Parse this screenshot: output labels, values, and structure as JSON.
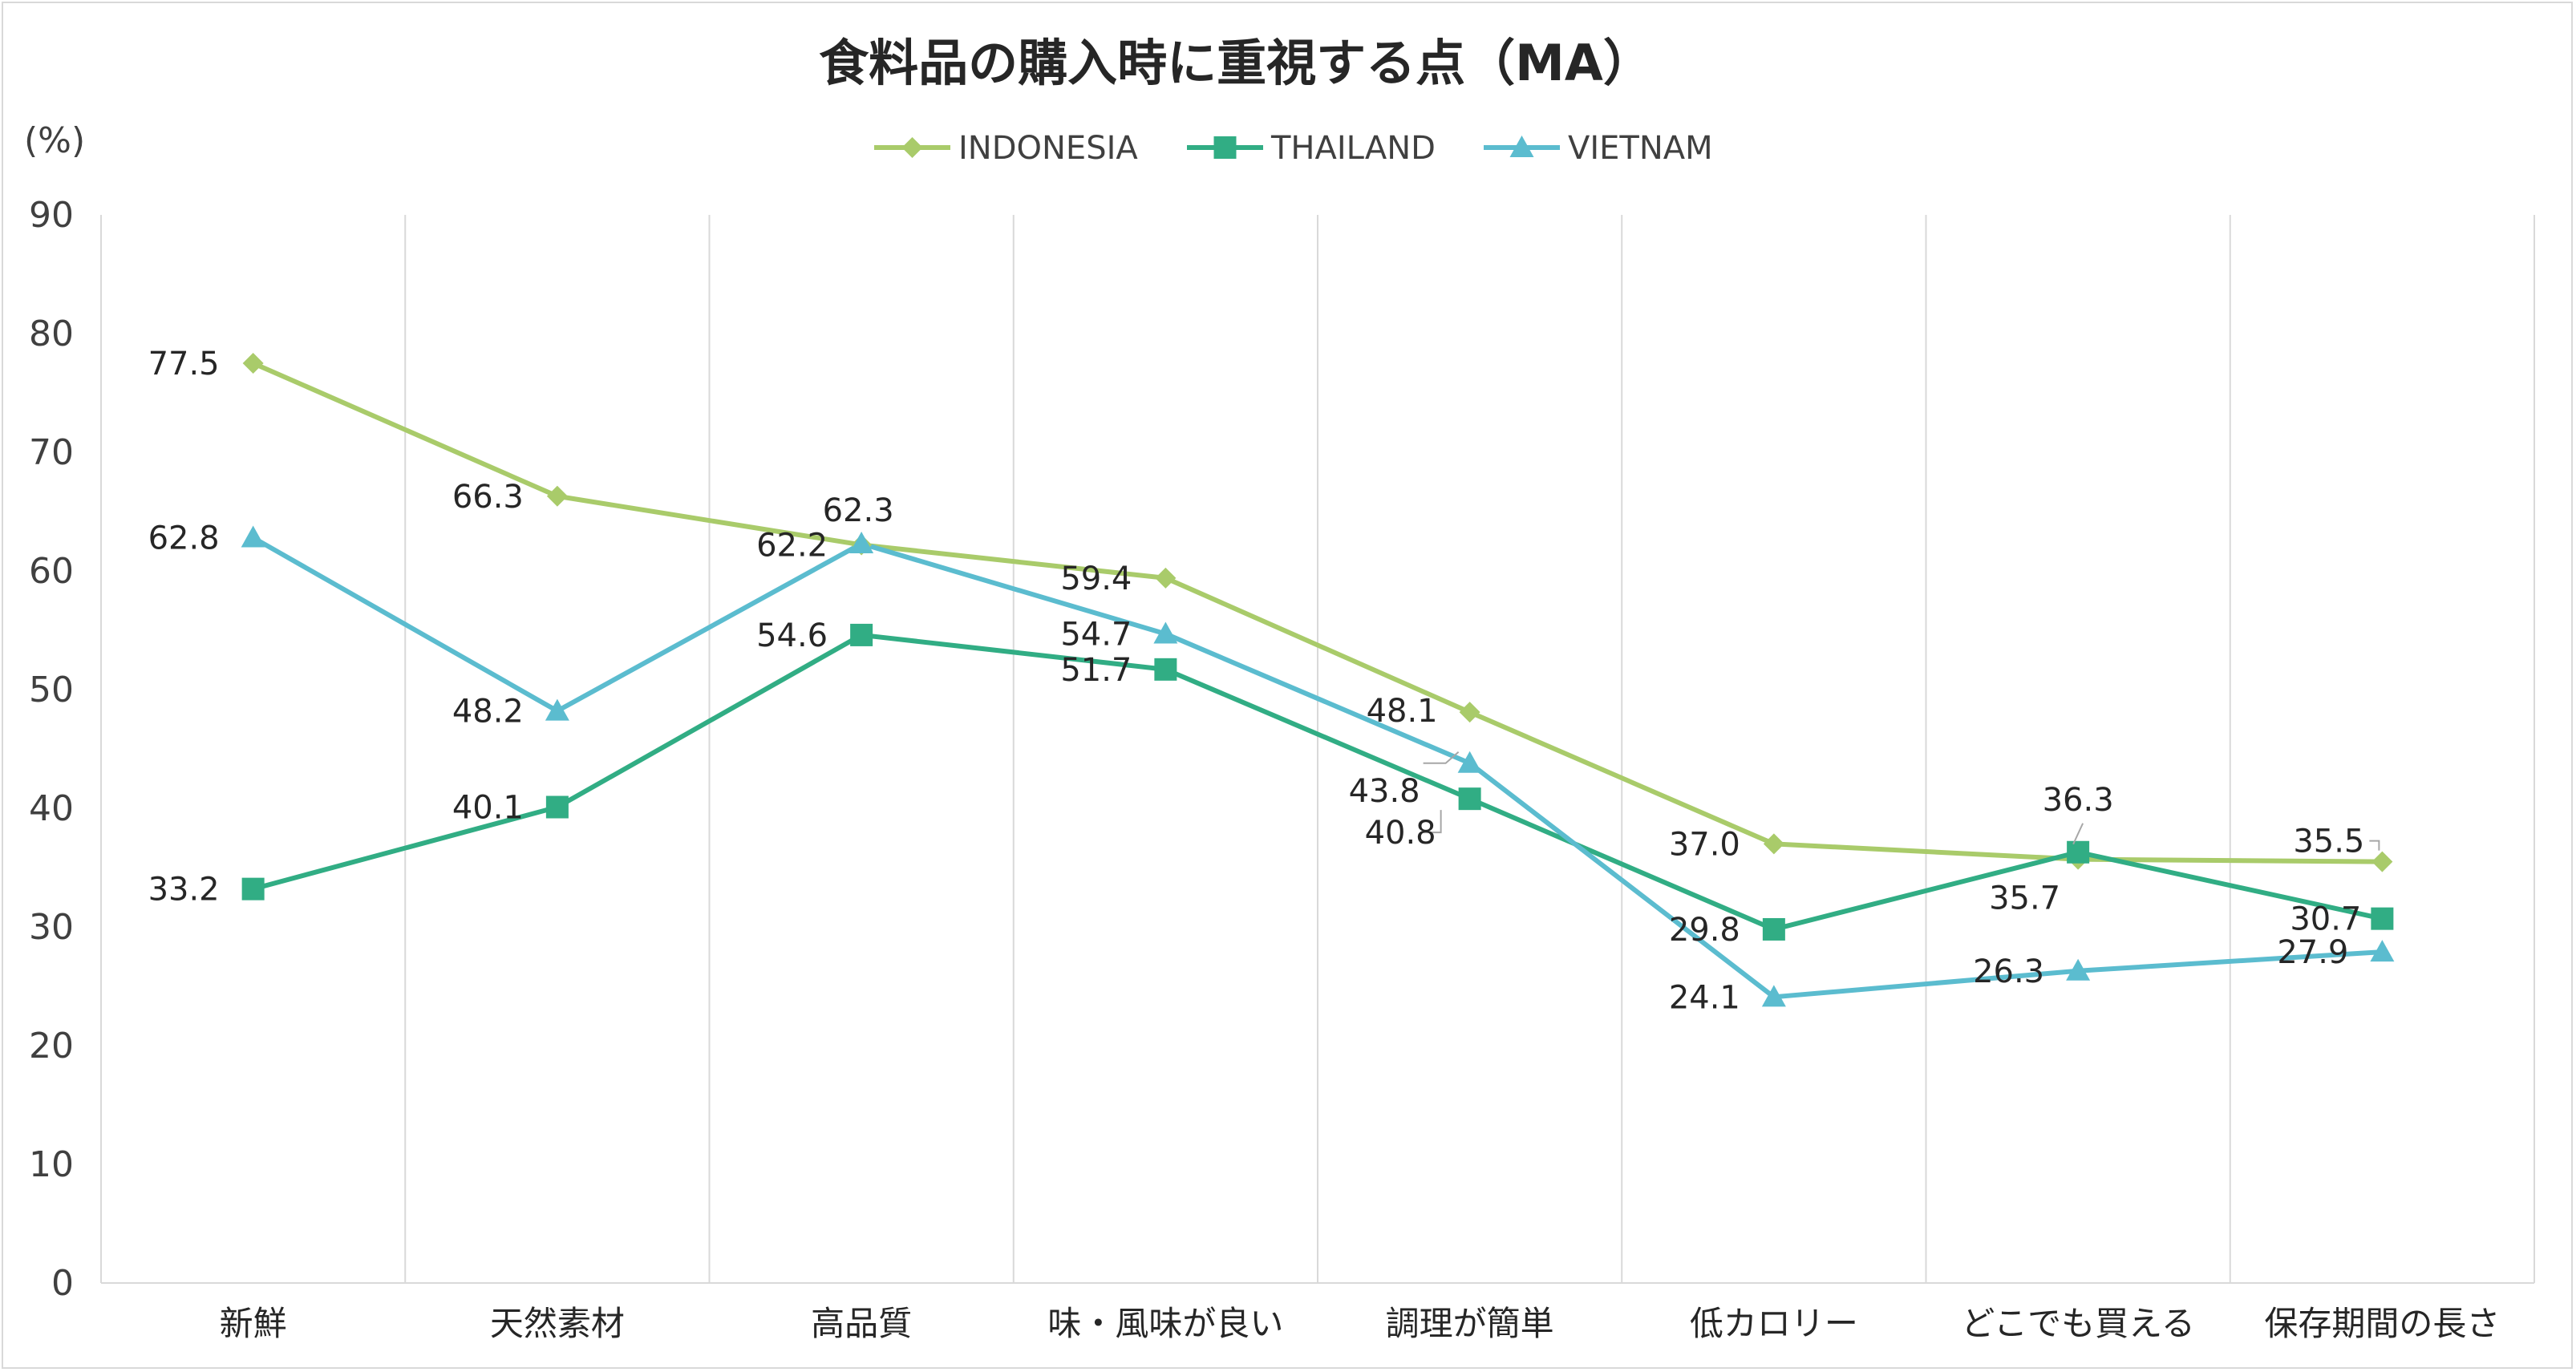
{
  "chart_data": {
    "type": "line",
    "title": "食料品の購入時に重視する点（MA）",
    "ylabel": "(%)",
    "xlabel": "",
    "ylim": [
      0,
      90
    ],
    "yticks": [
      0,
      10,
      20,
      30,
      40,
      50,
      60,
      70,
      80,
      90
    ],
    "grid": "vertical",
    "legend_position": "top",
    "categories": [
      "新鮮",
      "天然素材",
      "高品質",
      "味・風味が良い",
      "調理が簡単",
      "低カロリー",
      "どこでも買える",
      "保存期間の長さ"
    ],
    "series": [
      {
        "name": "INDONESIA",
        "color": "#a9cb6a",
        "marker": "diamond",
        "values": [
          77.5,
          66.3,
          62.2,
          59.4,
          48.1,
          37.0,
          35.7,
          35.5
        ],
        "labels": [
          "77.5",
          "66.3",
          "62.2",
          "59.4",
          "48.1",
          "37.0",
          "35.7",
          "35.5"
        ]
      },
      {
        "name": "THAILAND",
        "color": "#31ad84",
        "marker": "square",
        "values": [
          33.2,
          40.1,
          54.6,
          51.7,
          40.8,
          29.8,
          36.3,
          30.7
        ],
        "labels": [
          "33.2",
          "40.1",
          "54.6",
          "51.7",
          "40.8",
          "29.8",
          "36.3",
          "30.7"
        ]
      },
      {
        "name": "VIETNAM",
        "color": "#5bbccf",
        "marker": "triangle",
        "values": [
          62.8,
          48.2,
          62.3,
          54.7,
          43.8,
          24.1,
          26.3,
          27.9
        ],
        "labels": [
          "62.8",
          "48.2",
          "62.3",
          "54.7",
          "43.8",
          "24.1",
          "26.3",
          "27.9"
        ]
      }
    ]
  }
}
